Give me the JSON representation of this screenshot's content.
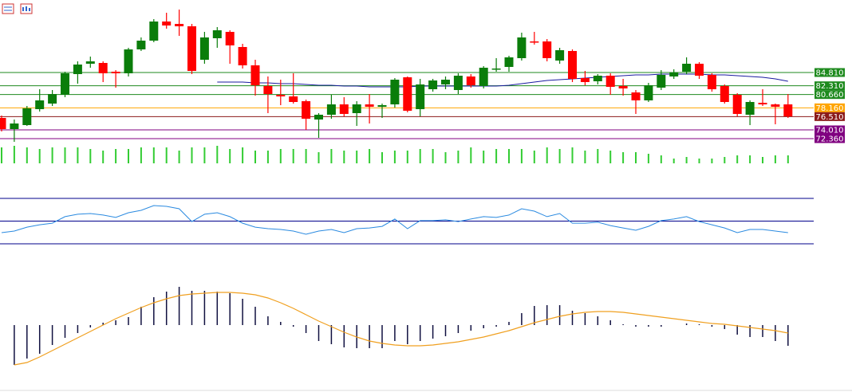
{
  "chart_data": [
    {
      "type": "candlestick",
      "up_color": "#0a7d0a",
      "down_color": "#ff0000",
      "ylim": [
        71.46,
        98.46
      ],
      "open": [
        76.26,
        74.16,
        74.91,
        77.91,
        78.96,
        80.61,
        84.51,
        86.46,
        86.61,
        84.96,
        84.66,
        89.16,
        90.81,
        94.41,
        93.96,
        93.51,
        87.21,
        91.26,
        92.46,
        89.61,
        86.16,
        82.26,
        80.61,
        80.31,
        79.41,
        75.96,
        76.86,
        78.81,
        77.16,
        78.81,
        78.36,
        78.81,
        83.91,
        77.91,
        81.66,
        82.56,
        81.51,
        84.06,
        82.26,
        85.41,
        85.86,
        87.51,
        90.66,
        90.66,
        87.06,
        88.86,
        83.76,
        83.16,
        84.21,
        82.26,
        81.06,
        79.56,
        81.96,
        84.06,
        84.96,
        86.46,
        84.36,
        82.26,
        80.61,
        76.86,
        79.11,
        78.81,
        78.81
      ],
      "high": [
        76.71,
        75.96,
        78.51,
        81.66,
        81.51,
        84.96,
        86.91,
        87.81,
        86.91,
        85.26,
        89.46,
        91.41,
        94.86,
        96.06,
        96.66,
        93.96,
        92.46,
        93.36,
        92.76,
        90.21,
        87.21,
        84.06,
        83.46,
        84.66,
        79.71,
        77.16,
        80.61,
        80.16,
        79.41,
        80.76,
        78.96,
        83.76,
        84.06,
        83.61,
        83.61,
        84.06,
        84.66,
        84.51,
        86.01,
        87.51,
        87.96,
        92.31,
        92.46,
        91.11,
        89.46,
        89.16,
        85.11,
        84.51,
        84.66,
        83.61,
        81.51,
        82.86,
        85.26,
        85.41,
        87.66,
        86.76,
        84.66,
        82.56,
        80.91,
        79.56,
        81.66,
        78.96,
        80.76
      ],
      "low": [
        73.71,
        71.76,
        74.76,
        77.46,
        78.51,
        80.16,
        82.71,
        85.71,
        83.01,
        81.96,
        84.06,
        88.86,
        90.51,
        93.06,
        91.71,
        84.51,
        86.46,
        89.46,
        86.46,
        85.56,
        80.46,
        77.16,
        78.66,
        78.96,
        74.01,
        72.51,
        76.11,
        76.56,
        74.76,
        75.21,
        76.26,
        78.21,
        77.31,
        76.56,
        81.21,
        81.66,
        80.76,
        81.96,
        81.81,
        84.96,
        84.96,
        87.06,
        90.06,
        86.91,
        86.46,
        83.01,
        82.41,
        82.56,
        80.61,
        80.46,
        77.01,
        79.26,
        81.51,
        83.61,
        84.51,
        83.61,
        81.21,
        78.96,
        76.56,
        74.91,
        78.51,
        75.06,
        76.26
      ],
      "close": [
        74.16,
        75.21,
        78.06,
        79.56,
        80.76,
        84.66,
        86.31,
        86.91,
        84.66,
        84.66,
        89.16,
        90.81,
        94.41,
        93.66,
        93.51,
        85.11,
        91.41,
        92.76,
        89.91,
        86.16,
        82.41,
        80.76,
        80.31,
        79.26,
        76.11,
        76.86,
        78.81,
        77.01,
        78.81,
        78.36,
        78.66,
        83.46,
        77.61,
        82.56,
        83.31,
        83.46,
        84.21,
        82.41,
        85.71,
        85.56,
        87.66,
        91.41,
        90.51,
        87.51,
        89.01,
        83.61,
        83.01,
        84.21,
        82.11,
        81.81,
        79.56,
        82.41,
        84.36,
        84.81,
        86.46,
        84.21,
        81.66,
        79.26,
        77.01,
        79.26,
        78.81,
        78.36,
        76.56
      ],
      "series": [
        {
          "color": "#1a1aa0",
          "values": [
            null,
            null,
            null,
            null,
            null,
            null,
            null,
            null,
            null,
            null,
            null,
            null,
            null,
            null,
            null,
            null,
            null,
            83.01,
            83.01,
            83.01,
            82.86,
            82.86,
            82.71,
            82.71,
            82.56,
            82.41,
            82.41,
            82.26,
            82.26,
            82.11,
            82.11,
            82.11,
            82.11,
            82.26,
            82.26,
            82.26,
            82.26,
            82.26,
            82.26,
            82.26,
            82.41,
            82.71,
            83.01,
            83.31,
            83.46,
            83.61,
            83.76,
            83.91,
            84.06,
            84.21,
            84.36,
            84.36,
            84.51,
            84.51,
            84.51,
            84.51,
            84.36,
            84.36,
            84.21,
            84.06,
            83.91,
            83.61,
            83.16
          ]
        }
      ],
      "levels": [
        {
          "value": 84.81,
          "label": "84.810",
          "color": "#1e8a1e"
        },
        {
          "value": 82.31,
          "label": "82.310",
          "color": "#1e8a1e"
        },
        {
          "value": 80.66,
          "label": "80.660",
          "color": "#1e8a1e"
        },
        {
          "value": 78.16,
          "label": "78.160",
          "color": "#ffa500"
        },
        {
          "value": 76.51,
          "label": "76.510",
          "color": "#8b1a1a"
        },
        {
          "value": 74.01,
          "label": "74.010",
          "color": "#800080"
        },
        {
          "value": 72.36,
          "label": "72.360",
          "color": "#800080"
        }
      ]
    },
    {
      "type": "bar",
      "color": "#33cc33",
      "ylim": [
        0,
        30
      ],
      "values": [
        20,
        22,
        20,
        18,
        20,
        20,
        20,
        18,
        16,
        18,
        18,
        20,
        20,
        20,
        16,
        20,
        20,
        22,
        18,
        20,
        16,
        16,
        18,
        18,
        18,
        14,
        18,
        16,
        16,
        18,
        14,
        16,
        16,
        18,
        18,
        14,
        16,
        20,
        16,
        18,
        18,
        18,
        16,
        20,
        18,
        20,
        16,
        18,
        16,
        14,
        14,
        12,
        10,
        6,
        8,
        6,
        6,
        8,
        10,
        10,
        8,
        10,
        10
      ]
    },
    {
      "type": "line",
      "color": "#2a8ae0",
      "level_color": "#00008b",
      "ylim": [
        30,
        70
      ],
      "levels": [
        30,
        50,
        70
      ],
      "values": [
        39.8,
        41.2,
        44.7,
        46.8,
        48.2,
        53.9,
        56.0,
        56.7,
        55.3,
        53.2,
        57.4,
        59.5,
        63.7,
        63.0,
        60.9,
        49.6,
        56.0,
        57.4,
        53.9,
        48.2,
        44.7,
        43.3,
        42.6,
        41.2,
        38.4,
        41.2,
        42.6,
        39.8,
        43.3,
        44.0,
        45.4,
        51.8,
        43.3,
        50.4,
        50.4,
        51.1,
        49.6,
        51.8,
        53.9,
        53.2,
        55.3,
        60.9,
        58.8,
        53.9,
        56.7,
        48.2,
        48.2,
        49.0,
        46.1,
        44.0,
        41.9,
        45.4,
        50.4,
        51.8,
        53.9,
        49.6,
        46.8,
        44.0,
        39.8,
        42.6,
        42.6,
        41.2,
        39.8
      ]
    },
    {
      "type": "macd",
      "ylim": [
        -5,
        5
      ],
      "series": [
        {
          "kind": "histogram",
          "color": "#101040",
          "values": [
            null,
            -5.0,
            -4.2,
            -3.6,
            -2.5,
            -1.6,
            -1.0,
            -0.3,
            0.3,
            0.6,
            1.0,
            2.3,
            3.5,
            4.2,
            4.8,
            4.3,
            4.3,
            4.2,
            4.0,
            3.3,
            2.3,
            1.1,
            0.4,
            -0.2,
            -1.0,
            -2.0,
            -2.4,
            -2.8,
            -2.9,
            -2.9,
            -2.9,
            -2.0,
            -2.4,
            -2.0,
            -1.7,
            -1.4,
            -1.0,
            -0.7,
            -0.4,
            -0.2,
            0.4,
            1.5,
            2.4,
            2.5,
            2.5,
            1.8,
            1.5,
            1.1,
            0.6,
            0.1,
            -0.2,
            -0.2,
            -0.2,
            0.0,
            0.2,
            0.1,
            -0.2,
            -0.5,
            -1.2,
            -1.5,
            -1.5,
            -2.0,
            -2.6
          ]
        },
        {
          "kind": "line",
          "color": "#f0a020",
          "values": [
            null,
            -5.0,
            -4.7,
            -4.0,
            -3.2,
            -2.4,
            -1.6,
            -0.8,
            0.0,
            0.8,
            1.5,
            2.2,
            2.8,
            3.3,
            3.7,
            3.9,
            4.0,
            4.1,
            4.1,
            4.0,
            3.8,
            3.4,
            2.8,
            2.1,
            1.3,
            0.5,
            -0.2,
            -0.9,
            -1.5,
            -2.0,
            -2.3,
            -2.5,
            -2.6,
            -2.6,
            -2.5,
            -2.3,
            -2.1,
            -1.8,
            -1.5,
            -1.1,
            -0.7,
            -0.2,
            0.3,
            0.7,
            1.1,
            1.4,
            1.6,
            1.7,
            1.7,
            1.6,
            1.4,
            1.2,
            1.0,
            0.8,
            0.6,
            0.4,
            0.2,
            0.1,
            -0.1,
            -0.3,
            -0.5,
            -0.7,
            -1.0
          ]
        }
      ]
    }
  ]
}
